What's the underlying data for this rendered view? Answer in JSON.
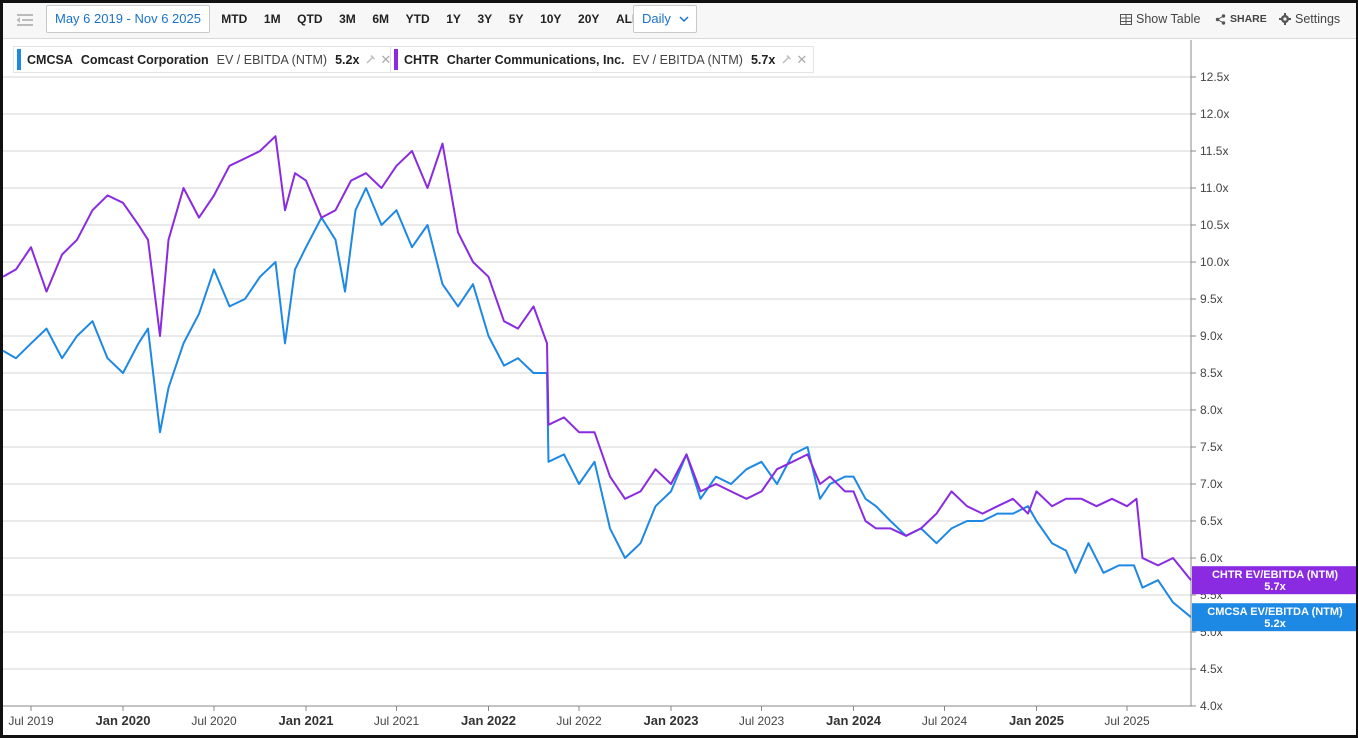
{
  "toolbar": {
    "date_range": "May 6 2019 - Nov 6 2025",
    "periods": [
      "MTD",
      "1M",
      "QTD",
      "3M",
      "6M",
      "YTD",
      "1Y",
      "3Y",
      "5Y",
      "10Y",
      "20Y",
      "ALL"
    ],
    "frequency": "Daily",
    "show_table": "Show Table",
    "share": "SHARE",
    "settings": "Settings"
  },
  "legend": [
    {
      "ticker": "CMCSA",
      "name": "Comcast Corporation",
      "metric": "EV / EBITDA (NTM)",
      "value": "5.2x",
      "color": "#1e88e5"
    },
    {
      "ticker": "CHTR",
      "name": "Charter Communications, Inc.",
      "metric": "EV / EBITDA (NTM)",
      "value": "5.7x",
      "color": "#8a2be2"
    }
  ],
  "chart_data": {
    "type": "line",
    "title": "",
    "xlabel": "",
    "ylabel": "",
    "x_range": [
      "2019-05-06",
      "2025-11-06"
    ],
    "ylim": [
      4.0,
      13.0
    ],
    "y_ticks": [
      "4.0x",
      "4.5x",
      "5.0x",
      "5.5x",
      "6.0x",
      "6.5x",
      "7.0x",
      "7.5x",
      "8.0x",
      "8.5x",
      "9.0x",
      "9.5x",
      "10.0x",
      "10.5x",
      "11.0x",
      "11.5x",
      "12.0x",
      "12.5x"
    ],
    "x_ticks": [
      {
        "label": "Jul 2019",
        "date": "2019-07-01",
        "bold": false
      },
      {
        "label": "Jan 2020",
        "date": "2020-01-01",
        "bold": true
      },
      {
        "label": "Jul 2020",
        "date": "2020-07-01",
        "bold": false
      },
      {
        "label": "Jan 2021",
        "date": "2021-01-01",
        "bold": true
      },
      {
        "label": "Jul 2021",
        "date": "2021-07-01",
        "bold": false
      },
      {
        "label": "Jan 2022",
        "date": "2022-01-01",
        "bold": true
      },
      {
        "label": "Jul 2022",
        "date": "2022-07-01",
        "bold": false
      },
      {
        "label": "Jan 2023",
        "date": "2023-01-01",
        "bold": true
      },
      {
        "label": "Jul 2023",
        "date": "2023-07-01",
        "bold": false
      },
      {
        "label": "Jan 2024",
        "date": "2024-01-01",
        "bold": true
      },
      {
        "label": "Jul 2024",
        "date": "2024-07-01",
        "bold": false
      },
      {
        "label": "Jan 2025",
        "date": "2025-01-01",
        "bold": true
      },
      {
        "label": "Jul 2025",
        "date": "2025-07-01",
        "bold": false
      }
    ],
    "grid": true,
    "series": [
      {
        "name": "CMCSA EV/EBITDA (NTM)",
        "end_label": "5.2x",
        "color": "#1e88e5",
        "points": [
          [
            "2019-05-06",
            8.8
          ],
          [
            "2019-06-01",
            8.7
          ],
          [
            "2019-07-01",
            8.9
          ],
          [
            "2019-08-01",
            9.1
          ],
          [
            "2019-09-01",
            8.7
          ],
          [
            "2019-10-01",
            9.0
          ],
          [
            "2019-11-01",
            9.2
          ],
          [
            "2019-12-01",
            8.7
          ],
          [
            "2020-01-01",
            8.5
          ],
          [
            "2020-02-01",
            8.9
          ],
          [
            "2020-02-20",
            9.1
          ],
          [
            "2020-03-15",
            7.7
          ],
          [
            "2020-04-01",
            8.3
          ],
          [
            "2020-05-01",
            8.9
          ],
          [
            "2020-06-01",
            9.3
          ],
          [
            "2020-07-01",
            9.9
          ],
          [
            "2020-08-01",
            9.4
          ],
          [
            "2020-09-01",
            9.5
          ],
          [
            "2020-10-01",
            9.8
          ],
          [
            "2020-11-01",
            10.0
          ],
          [
            "2020-11-20",
            8.9
          ],
          [
            "2020-12-10",
            9.9
          ],
          [
            "2021-01-01",
            10.2
          ],
          [
            "2021-02-01",
            10.6
          ],
          [
            "2021-03-01",
            10.3
          ],
          [
            "2021-03-20",
            9.6
          ],
          [
            "2021-04-10",
            10.7
          ],
          [
            "2021-05-01",
            11.0
          ],
          [
            "2021-06-01",
            10.5
          ],
          [
            "2021-07-01",
            10.7
          ],
          [
            "2021-08-01",
            10.2
          ],
          [
            "2021-09-01",
            10.5
          ],
          [
            "2021-10-01",
            9.7
          ],
          [
            "2021-11-01",
            9.4
          ],
          [
            "2021-12-01",
            9.7
          ],
          [
            "2022-01-01",
            9.0
          ],
          [
            "2022-02-01",
            8.6
          ],
          [
            "2022-03-01",
            8.7
          ],
          [
            "2022-04-01",
            8.5
          ],
          [
            "2022-04-28",
            8.5
          ],
          [
            "2022-05-01",
            7.3
          ],
          [
            "2022-06-01",
            7.4
          ],
          [
            "2022-07-01",
            7.0
          ],
          [
            "2022-08-01",
            7.3
          ],
          [
            "2022-09-01",
            6.4
          ],
          [
            "2022-10-01",
            6.0
          ],
          [
            "2022-11-01",
            6.2
          ],
          [
            "2022-12-01",
            6.7
          ],
          [
            "2023-01-01",
            6.9
          ],
          [
            "2023-02-01",
            7.4
          ],
          [
            "2023-03-01",
            6.8
          ],
          [
            "2023-04-01",
            7.1
          ],
          [
            "2023-05-01",
            7.0
          ],
          [
            "2023-06-01",
            7.2
          ],
          [
            "2023-07-01",
            7.3
          ],
          [
            "2023-08-01",
            7.0
          ],
          [
            "2023-09-01",
            7.4
          ],
          [
            "2023-10-01",
            7.5
          ],
          [
            "2023-10-26",
            6.8
          ],
          [
            "2023-11-15",
            7.0
          ],
          [
            "2023-12-15",
            7.1
          ],
          [
            "2024-01-01",
            7.1
          ],
          [
            "2024-01-25",
            6.8
          ],
          [
            "2024-02-15",
            6.7
          ],
          [
            "2024-03-15",
            6.5
          ],
          [
            "2024-04-15",
            6.3
          ],
          [
            "2024-05-15",
            6.4
          ],
          [
            "2024-06-15",
            6.2
          ],
          [
            "2024-07-15",
            6.4
          ],
          [
            "2024-08-15",
            6.5
          ],
          [
            "2024-09-15",
            6.5
          ],
          [
            "2024-10-15",
            6.6
          ],
          [
            "2024-11-15",
            6.6
          ],
          [
            "2024-12-15",
            6.7
          ],
          [
            "2025-01-01",
            6.5
          ],
          [
            "2025-02-01",
            6.2
          ],
          [
            "2025-03-01",
            6.1
          ],
          [
            "2025-03-20",
            5.8
          ],
          [
            "2025-04-15",
            6.2
          ],
          [
            "2025-05-15",
            5.8
          ],
          [
            "2025-06-15",
            5.9
          ],
          [
            "2025-07-15",
            5.9
          ],
          [
            "2025-08-01",
            5.6
          ],
          [
            "2025-09-01",
            5.7
          ],
          [
            "2025-10-01",
            5.4
          ],
          [
            "2025-11-06",
            5.2
          ]
        ]
      },
      {
        "name": "CHTR EV/EBITDA (NTM)",
        "end_label": "5.7x",
        "color": "#8a2be2",
        "points": [
          [
            "2019-05-06",
            9.8
          ],
          [
            "2019-06-01",
            9.9
          ],
          [
            "2019-07-01",
            10.2
          ],
          [
            "2019-08-01",
            9.6
          ],
          [
            "2019-09-01",
            10.1
          ],
          [
            "2019-10-01",
            10.3
          ],
          [
            "2019-11-01",
            10.7
          ],
          [
            "2019-12-01",
            10.9
          ],
          [
            "2020-01-01",
            10.8
          ],
          [
            "2020-02-01",
            10.5
          ],
          [
            "2020-02-20",
            10.3
          ],
          [
            "2020-03-15",
            9.0
          ],
          [
            "2020-04-01",
            10.3
          ],
          [
            "2020-05-01",
            11.0
          ],
          [
            "2020-06-01",
            10.6
          ],
          [
            "2020-07-01",
            10.9
          ],
          [
            "2020-08-01",
            11.3
          ],
          [
            "2020-09-01",
            11.4
          ],
          [
            "2020-10-01",
            11.5
          ],
          [
            "2020-11-01",
            11.7
          ],
          [
            "2020-11-20",
            10.7
          ],
          [
            "2020-12-10",
            11.2
          ],
          [
            "2021-01-01",
            11.1
          ],
          [
            "2021-02-01",
            10.6
          ],
          [
            "2021-03-01",
            10.7
          ],
          [
            "2021-04-01",
            11.1
          ],
          [
            "2021-05-01",
            11.2
          ],
          [
            "2021-06-01",
            11.0
          ],
          [
            "2021-07-01",
            11.3
          ],
          [
            "2021-08-01",
            11.5
          ],
          [
            "2021-09-01",
            11.0
          ],
          [
            "2021-10-01",
            11.6
          ],
          [
            "2021-11-01",
            10.4
          ],
          [
            "2021-12-01",
            10.0
          ],
          [
            "2022-01-01",
            9.8
          ],
          [
            "2022-02-01",
            9.2
          ],
          [
            "2022-03-01",
            9.1
          ],
          [
            "2022-04-01",
            9.4
          ],
          [
            "2022-04-28",
            8.9
          ],
          [
            "2022-05-01",
            7.8
          ],
          [
            "2022-06-01",
            7.9
          ],
          [
            "2022-07-01",
            7.7
          ],
          [
            "2022-08-01",
            7.7
          ],
          [
            "2022-09-01",
            7.1
          ],
          [
            "2022-10-01",
            6.8
          ],
          [
            "2022-11-01",
            6.9
          ],
          [
            "2022-12-01",
            7.2
          ],
          [
            "2023-01-01",
            7.0
          ],
          [
            "2023-02-01",
            7.4
          ],
          [
            "2023-03-01",
            6.9
          ],
          [
            "2023-04-01",
            7.0
          ],
          [
            "2023-05-01",
            6.9
          ],
          [
            "2023-06-01",
            6.8
          ],
          [
            "2023-07-01",
            6.9
          ],
          [
            "2023-08-01",
            7.2
          ],
          [
            "2023-09-01",
            7.3
          ],
          [
            "2023-10-01",
            7.4
          ],
          [
            "2023-10-26",
            7.0
          ],
          [
            "2023-11-15",
            7.1
          ],
          [
            "2023-12-15",
            6.9
          ],
          [
            "2024-01-01",
            6.9
          ],
          [
            "2024-01-25",
            6.5
          ],
          [
            "2024-02-15",
            6.4
          ],
          [
            "2024-03-15",
            6.4
          ],
          [
            "2024-04-15",
            6.3
          ],
          [
            "2024-05-15",
            6.4
          ],
          [
            "2024-06-15",
            6.6
          ],
          [
            "2024-07-15",
            6.9
          ],
          [
            "2024-08-15",
            6.7
          ],
          [
            "2024-09-15",
            6.6
          ],
          [
            "2024-10-15",
            6.7
          ],
          [
            "2024-11-15",
            6.8
          ],
          [
            "2024-12-15",
            6.6
          ],
          [
            "2025-01-01",
            6.9
          ],
          [
            "2025-02-01",
            6.7
          ],
          [
            "2025-03-01",
            6.8
          ],
          [
            "2025-04-01",
            6.8
          ],
          [
            "2025-05-01",
            6.7
          ],
          [
            "2025-06-01",
            6.8
          ],
          [
            "2025-07-01",
            6.7
          ],
          [
            "2025-07-20",
            6.8
          ],
          [
            "2025-08-01",
            6.0
          ],
          [
            "2025-09-01",
            5.9
          ],
          [
            "2025-10-01",
            6.0
          ],
          [
            "2025-11-06",
            5.7
          ]
        ]
      }
    ]
  }
}
